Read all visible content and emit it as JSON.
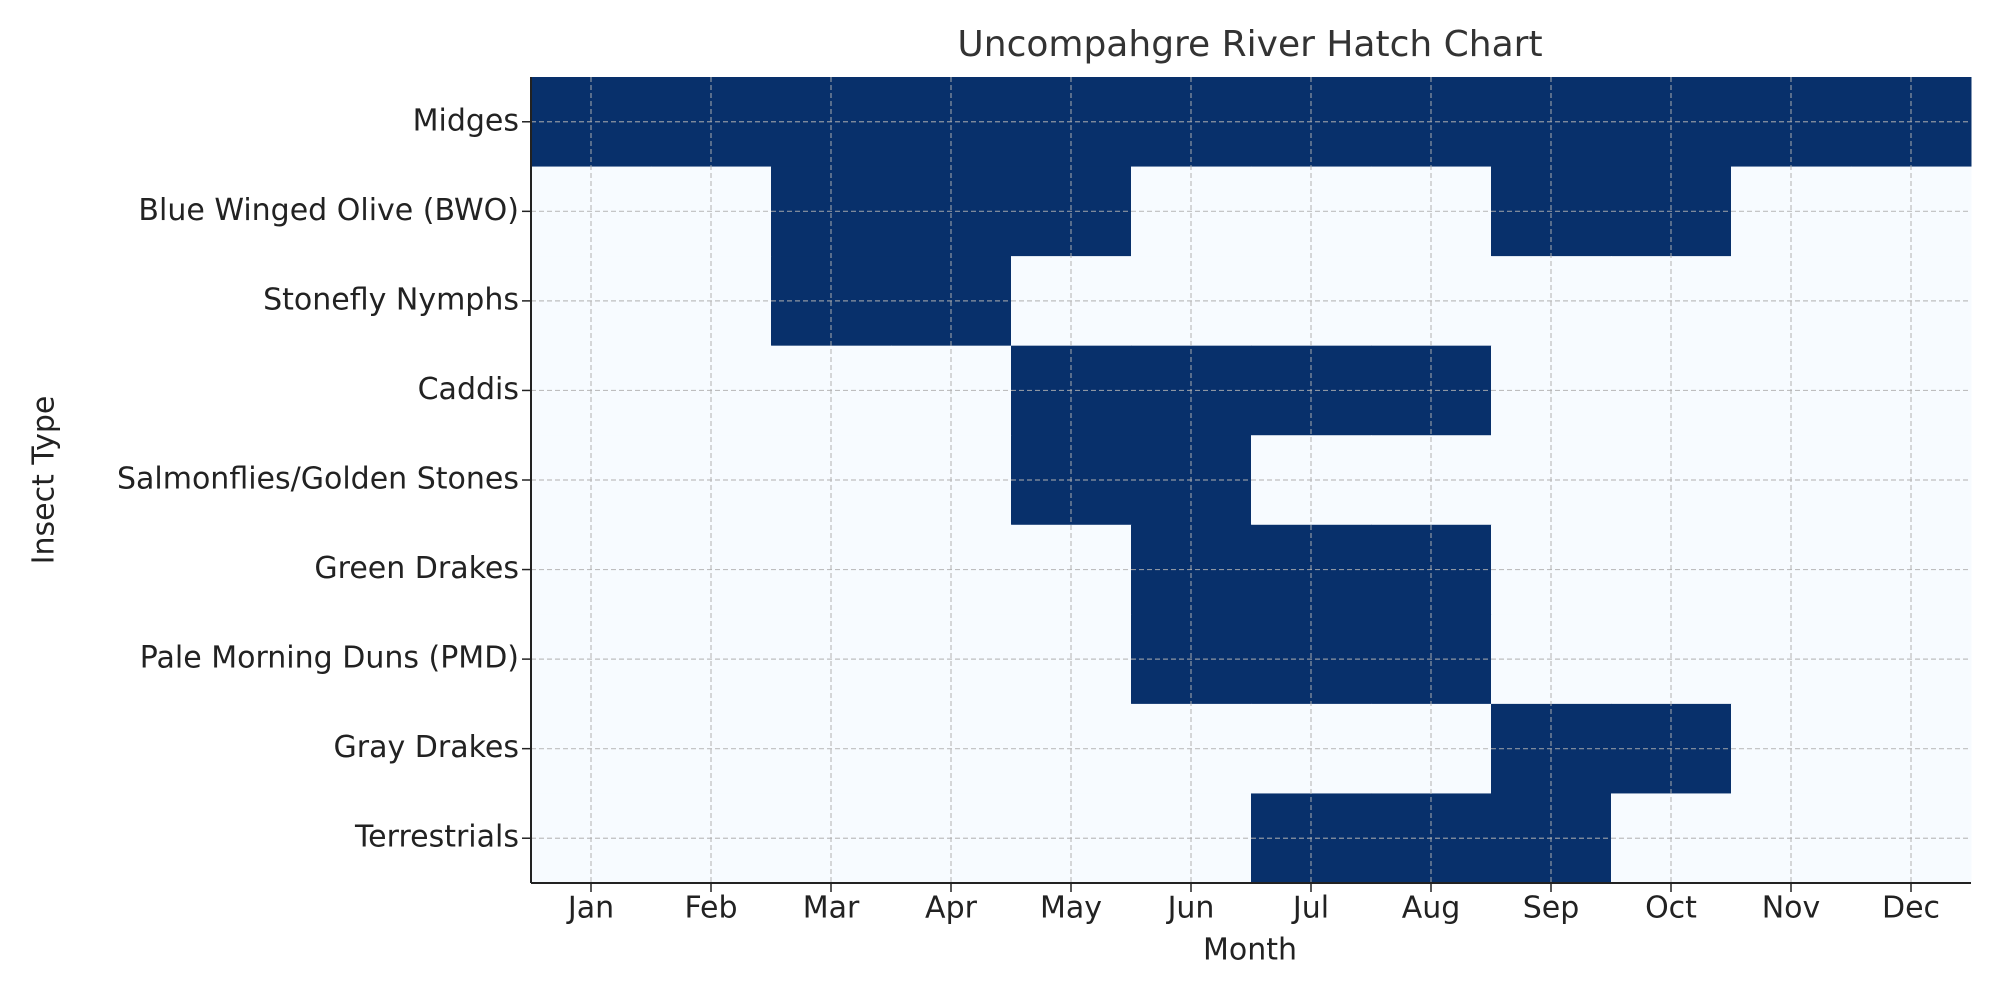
{
  "chart_data": {
    "type": "heatmap",
    "title": "Uncompahgre River Hatch Chart",
    "x_label": "Month",
    "y_label": "Insect Type",
    "categories": [
      "Jan",
      "Feb",
      "Mar",
      "Apr",
      "May",
      "Jun",
      "Jul",
      "Aug",
      "Sep",
      "Oct",
      "Nov",
      "Dec"
    ],
    "rows": [
      "Midges",
      "Blue Winged Olive (BWO)",
      "Stonefly Nymphs",
      "Caddis",
      "Salmonflies/Golden Stones",
      "Green Drakes",
      "Pale Morning Duns (PMD)",
      "Gray Drakes",
      "Terrestrials"
    ],
    "values": [
      [
        1,
        1,
        1,
        1,
        1,
        1,
        1,
        1,
        1,
        1,
        1,
        1
      ],
      [
        0,
        0,
        1,
        1,
        1,
        0,
        0,
        0,
        1,
        1,
        0,
        0
      ],
      [
        0,
        0,
        1,
        1,
        0,
        0,
        0,
        0,
        0,
        0,
        0,
        0
      ],
      [
        0,
        0,
        0,
        0,
        1,
        1,
        1,
        1,
        0,
        0,
        0,
        0
      ],
      [
        0,
        0,
        0,
        0,
        1,
        1,
        0,
        0,
        0,
        0,
        0,
        0
      ],
      [
        0,
        0,
        0,
        0,
        0,
        1,
        1,
        1,
        0,
        0,
        0,
        0
      ],
      [
        0,
        0,
        0,
        0,
        0,
        1,
        1,
        1,
        0,
        0,
        0,
        0
      ],
      [
        0,
        0,
        0,
        0,
        0,
        0,
        0,
        0,
        1,
        1,
        0,
        0
      ],
      [
        0,
        0,
        0,
        0,
        0,
        0,
        1,
        1,
        1,
        0,
        0,
        0
      ]
    ],
    "colormap": [
      "#f7fbff",
      "#08306b"
    ],
    "vlim": [
      0,
      1
    ],
    "grid": true
  }
}
